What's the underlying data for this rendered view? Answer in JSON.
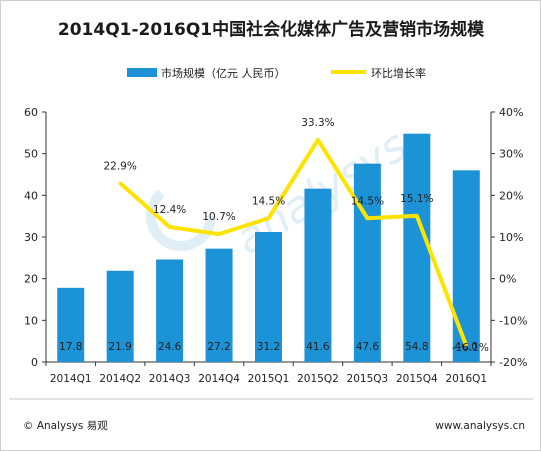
{
  "chart_data": {
    "type": "bar",
    "title": "2014Q1-2016Q1中国社会化媒体广告及营销市场规模",
    "categories": [
      "2014Q1",
      "2014Q2",
      "2014Q3",
      "2014Q4",
      "2015Q1",
      "2015Q2",
      "2015Q3",
      "2015Q4",
      "2016Q1"
    ],
    "series": [
      {
        "name": "市场规模（亿元 人民币）",
        "type": "bar",
        "axis": "left",
        "values": [
          17.8,
          21.9,
          24.6,
          27.2,
          31.2,
          41.6,
          47.6,
          54.8,
          46.0
        ],
        "labels": [
          "17.8",
          "21.9",
          "24.6",
          "27.2",
          "31.2",
          "41.6",
          "47.6",
          "54.8",
          "46.0"
        ],
        "color": "#1c93d6"
      },
      {
        "name": "环比增长率",
        "type": "line",
        "axis": "right",
        "values": [
          null,
          22.9,
          12.4,
          10.7,
          14.5,
          33.3,
          14.5,
          15.1,
          -16.1
        ],
        "labels": [
          "",
          "22.9%",
          "12.4%",
          "10.7%",
          "14.5%",
          "33.3%",
          "14.5%",
          "15.1%",
          "-16.1%"
        ],
        "color": "#fde300"
      }
    ],
    "y_left": {
      "lim": [
        0,
        60
      ],
      "ticks": [
        0,
        10,
        20,
        30,
        40,
        50,
        60
      ],
      "tick_labels": [
        "0",
        "10",
        "20",
        "30",
        "40",
        "50",
        "60"
      ]
    },
    "y_right": {
      "lim": [
        -20,
        40
      ],
      "ticks": [
        -20,
        -10,
        0,
        10,
        20,
        30,
        40
      ],
      "tick_labels": [
        "-20%",
        "-10%",
        "0%",
        "10%",
        "20%",
        "30%",
        "40%"
      ]
    },
    "legend_position": "top-center",
    "grid": false
  },
  "watermark": "analysys",
  "footer": {
    "left": "© Analysys 易观",
    "right": "www.analysys.cn"
  }
}
